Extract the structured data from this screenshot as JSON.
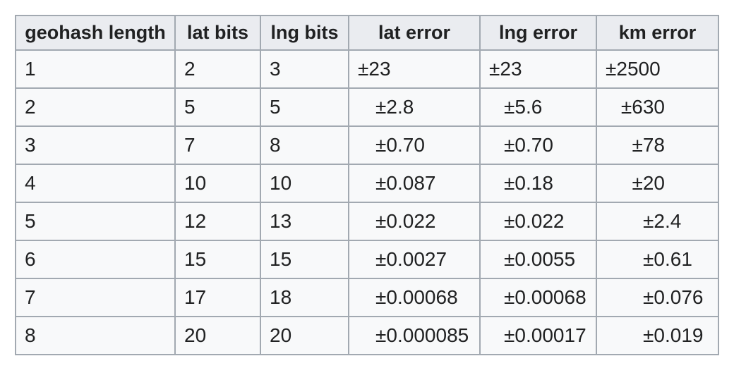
{
  "chart_data": {
    "type": "table",
    "columns": [
      "geohash length",
      "lat bits",
      "lng bits",
      "lat error",
      "lng error",
      "km error"
    ],
    "rows": [
      [
        "1",
        "2",
        "3",
        "±23",
        "±23",
        "±2500"
      ],
      [
        "2",
        "5",
        "5",
        "±2.8",
        "±5.6",
        "±630"
      ],
      [
        "3",
        "7",
        "8",
        "±0.70",
        "±0.70",
        "±78"
      ],
      [
        "4",
        "10",
        "10",
        "±0.087",
        "±0.18",
        "±20"
      ],
      [
        "5",
        "12",
        "13",
        "±0.022",
        "±0.022",
        "±2.4"
      ],
      [
        "6",
        "15",
        "15",
        "±0.0027",
        "±0.0055",
        "±0.61"
      ],
      [
        "7",
        "17",
        "18",
        "±0.00068",
        "±0.00068",
        "±0.076"
      ],
      [
        "8",
        "20",
        "20",
        "±0.000085",
        "±0.00017",
        "±0.019"
      ]
    ]
  },
  "colors": {
    "page_bg": "#ffffff",
    "row_bg": "#f8f9fa",
    "header_bg": "#eaecf0",
    "border": "#a2a9b1",
    "text": "#202122"
  }
}
